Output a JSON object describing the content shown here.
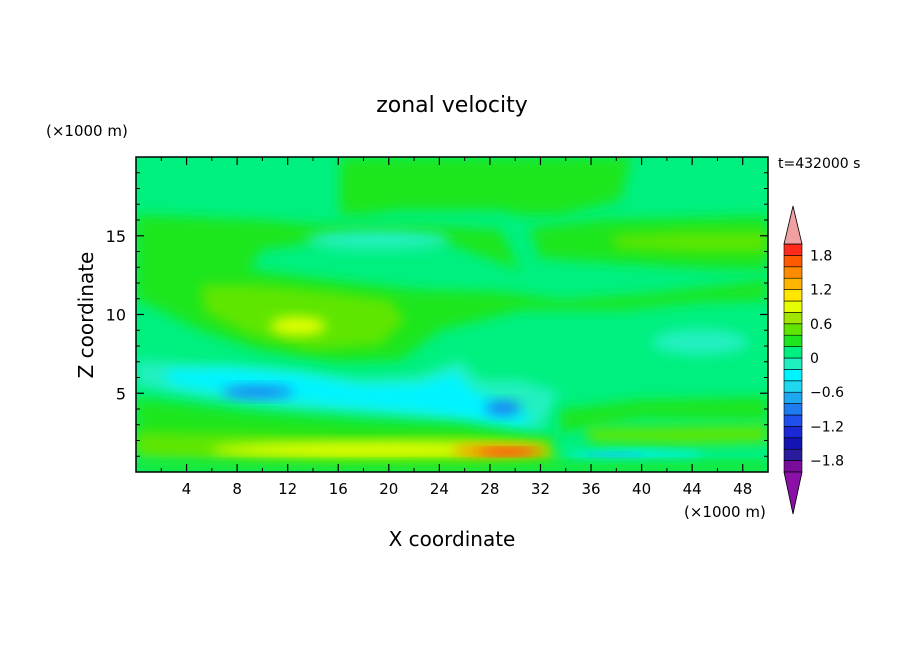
{
  "chart_data": {
    "type": "heatmap",
    "title": "zonal velocity",
    "time_label": "t=432000 s",
    "xlabel": "X coordinate",
    "ylabel": "Z coordinate",
    "x_units": "(×1000 m)",
    "y_units": "(×1000 m)",
    "xlim": [
      0,
      50
    ],
    "ylim": [
      0,
      20
    ],
    "x_ticks": [
      4,
      8,
      12,
      16,
      20,
      24,
      28,
      32,
      36,
      40,
      44,
      48
    ],
    "y_ticks": [
      5,
      10,
      15
    ],
    "colorbar": {
      "levels": [
        -2.0,
        -1.8,
        -1.6,
        -1.4,
        -1.2,
        -1.0,
        -0.8,
        -0.6,
        -0.4,
        -0.2,
        0.0,
        0.2,
        0.4,
        0.6,
        0.8,
        1.0,
        1.2,
        1.4,
        1.6,
        1.8,
        2.0
      ],
      "colors": [
        "#7a0c9c",
        "#2a1a9c",
        "#1414b4",
        "#1a28d6",
        "#1f50ee",
        "#1e7cf0",
        "#1fa8f2",
        "#1fd8f0",
        "#00f4ff",
        "#20f0c0",
        "#00f080",
        "#1ee61e",
        "#5fe600",
        "#a0e600",
        "#e6ff00",
        "#ffe600",
        "#ffb400",
        "#ff8c00",
        "#ff5a00",
        "#ff2a1a",
        "#f0a0a0"
      ],
      "labels": [
        "1.8",
        "1.2",
        "0.6",
        "0",
        "−0.6",
        "−1.2",
        "−1.8"
      ],
      "over_color": "#f0a0a0",
      "under_color": "#8a10a8"
    },
    "features": [
      {
        "x": 10,
        "z": 5.3,
        "value": -0.7
      },
      {
        "x": 29,
        "z": 4.2,
        "value": -0.7
      },
      {
        "x": 14,
        "z": 14.8,
        "value": -0.45
      },
      {
        "x": 42,
        "z": 8.4,
        "value": -0.45
      },
      {
        "x": 12,
        "z": 9.2,
        "value": 0.55
      },
      {
        "x": 44,
        "z": 14.9,
        "value": 0.3
      },
      {
        "x": 29,
        "z": 1.2,
        "value": 1.6
      },
      {
        "x": 28,
        "z": 2.0,
        "value": 0.9
      },
      {
        "x": 42,
        "z": 1.1,
        "value": -0.5
      },
      {
        "x": 14,
        "z": 2.4,
        "value": 0.45
      }
    ]
  }
}
